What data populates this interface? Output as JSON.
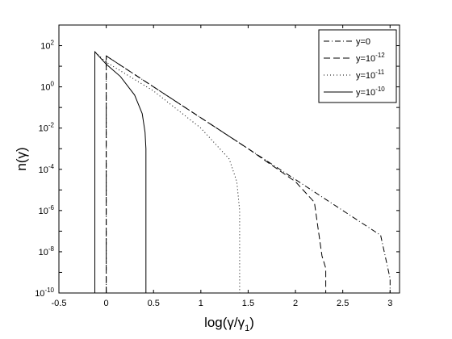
{
  "chart_data": {
    "type": "line",
    "title": "",
    "xlabel": "log(γ/γ1)",
    "ylabel": "n(γ)",
    "xlim": [
      -0.5,
      3.1
    ],
    "ylim_exponent": [
      -10,
      3
    ],
    "yscale": "log",
    "grid": false,
    "legend_position": "top-right",
    "x_ticks": [
      {
        "value": -0.5,
        "label": "-0.5"
      },
      {
        "value": 0,
        "label": "0"
      },
      {
        "value": 0.5,
        "label": "0.5"
      },
      {
        "value": 1,
        "label": "1"
      },
      {
        "value": 1.5,
        "label": "1.5"
      },
      {
        "value": 2,
        "label": "2"
      },
      {
        "value": 2.5,
        "label": "2.5"
      },
      {
        "value": 3,
        "label": "3"
      }
    ],
    "y_ticks": [
      {
        "exponent": 2,
        "base": "10",
        "exp_label": "2"
      },
      {
        "exponent": 0,
        "base": "10",
        "exp_label": "0"
      },
      {
        "exponent": -2,
        "base": "10",
        "exp_label": "-2"
      },
      {
        "exponent": -4,
        "base": "10",
        "exp_label": "-4"
      },
      {
        "exponent": -6,
        "base": "10",
        "exp_label": "-6"
      },
      {
        "exponent": -8,
        "base": "10",
        "exp_label": "-8"
      },
      {
        "exponent": -10,
        "base": "10",
        "exp_label": "-10"
      }
    ],
    "series": [
      {
        "name": "y=0",
        "legend_base": "y=0",
        "legend_exp": "",
        "style": "dashdot",
        "color": "#000000",
        "points": [
          [
            0.0,
            -10
          ],
          [
            0.0,
            1.5
          ],
          [
            0.5,
            0.0
          ],
          [
            1.0,
            -1.5
          ],
          [
            1.5,
            -3.0
          ],
          [
            2.0,
            -4.5
          ],
          [
            2.5,
            -6.0
          ],
          [
            2.9,
            -7.2
          ],
          [
            3.0,
            -9.3
          ],
          [
            3.0,
            -10
          ]
        ]
      },
      {
        "name": "y=10^-12",
        "legend_base": "y=10",
        "legend_exp": "-12",
        "style": "dashed",
        "color": "#000000",
        "points": [
          [
            0.0,
            -10
          ],
          [
            0.0,
            1.5
          ],
          [
            0.5,
            0.0
          ],
          [
            1.0,
            -1.5
          ],
          [
            1.5,
            -3.0
          ],
          [
            2.0,
            -4.6
          ],
          [
            2.2,
            -5.6
          ],
          [
            2.28,
            -8.2
          ],
          [
            2.32,
            -8.8
          ],
          [
            2.32,
            -10
          ]
        ]
      },
      {
        "name": "y=10^-11",
        "legend_base": "y=10",
        "legend_exp": "-11",
        "style": "dotted",
        "color": "#000000",
        "points": [
          [
            -0.12,
            -10
          ],
          [
            -0.12,
            1.7
          ],
          [
            0.0,
            1.2
          ],
          [
            0.5,
            -0.2
          ],
          [
            1.0,
            -2.0
          ],
          [
            1.3,
            -3.5
          ],
          [
            1.38,
            -4.6
          ],
          [
            1.41,
            -6.0
          ],
          [
            1.41,
            -10
          ]
        ]
      },
      {
        "name": "y=10^-10",
        "legend_base": "y=10",
        "legend_exp": "-10",
        "style": "solid",
        "color": "#000000",
        "points": [
          [
            -0.12,
            -10
          ],
          [
            -0.12,
            1.7
          ],
          [
            0.0,
            1.1
          ],
          [
            0.15,
            0.5
          ],
          [
            0.3,
            -0.4
          ],
          [
            0.38,
            -1.3
          ],
          [
            0.41,
            -2.2
          ],
          [
            0.42,
            -3.0
          ],
          [
            0.42,
            -10
          ]
        ]
      }
    ]
  }
}
